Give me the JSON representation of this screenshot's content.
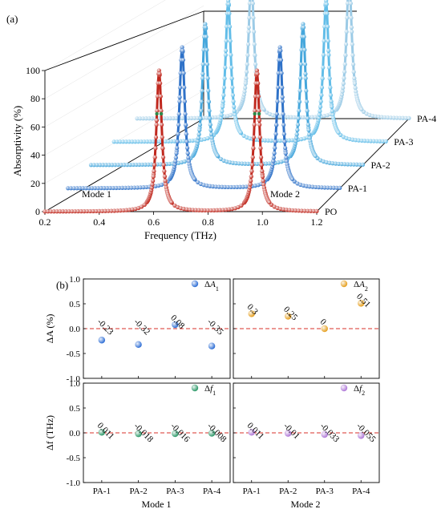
{
  "chart_data": [
    {
      "type": "line",
      "panel_label": "(a)",
      "xlabel": "Frequency (THz)",
      "ylabel": "Absorptivity (%)",
      "x_ticks": [
        "0.2",
        "0.4",
        "0.6",
        "0.8",
        "1.0",
        "1.2"
      ],
      "y_ticks": [
        "0",
        "20",
        "40",
        "60",
        "80",
        "100"
      ],
      "xlim": [
        0.2,
        1.2
      ],
      "ylim": [
        0,
        100
      ],
      "layers": [
        "PO",
        "PA-1",
        "PA-2",
        "PA-3",
        "PA-4"
      ],
      "annotations": [
        "Mode 1",
        "Mode 2"
      ],
      "series": [
        {
          "name": "PO",
          "peaks": [
            0.62,
            0.98
          ],
          "peak_values": [
            100,
            100
          ],
          "color": "#c0281e"
        },
        {
          "name": "PA-1",
          "peaks": [
            0.62,
            0.98
          ],
          "peak_values": [
            100,
            100
          ],
          "color": "#2f72c8"
        },
        {
          "name": "PA-2",
          "peaks": [
            0.62,
            0.98
          ],
          "peak_values": [
            100,
            100
          ],
          "color": "#46a7dc"
        },
        {
          "name": "PA-3",
          "peaks": [
            0.62,
            0.98
          ],
          "peak_values": [
            100,
            100
          ],
          "color": "#62bde8"
        },
        {
          "name": "PA-4",
          "peaks": [
            0.62,
            0.98
          ],
          "peak_values": [
            100,
            100
          ],
          "color": "#9ccbe6"
        }
      ]
    },
    {
      "type": "scatter",
      "panel_label": "(b)",
      "grid": false,
      "categories": [
        "PA-1",
        "PA-2",
        "PA-3",
        "PA-4"
      ],
      "xlabel_left": "Mode 1",
      "xlabel_right": "Mode 2",
      "top": {
        "ylabel": "ΔA (%)",
        "y_ticks": [
          "1.0",
          "0.5",
          "0.0",
          "-0.5",
          "-1.0"
        ],
        "ylim": [
          -1,
          1
        ],
        "left": {
          "legend": "ΔA1",
          "color": "#2f6fd6",
          "values": [
            -0.23,
            -0.32,
            0.08,
            -0.35
          ],
          "labels": [
            "-0.23",
            "-0.32",
            "0.08",
            "-0.35"
          ]
        },
        "right": {
          "legend": "ΔA2",
          "color": "#e6a020",
          "values": [
            0.3,
            0.25,
            0,
            0.51
          ],
          "labels": [
            "0.3",
            "0.25",
            "0",
            "0.51"
          ]
        }
      },
      "bottom": {
        "ylabel": "Δf (THz)",
        "y_ticks": [
          "1.0",
          "0.5",
          "0.0",
          "-0.5",
          "-1.0"
        ],
        "ylim": [
          -1,
          1
        ],
        "left": {
          "legend": "Δf1",
          "color": "#2e9a6a",
          "values": [
            0.011,
            -0.018,
            -0.016,
            -0.008
          ],
          "labels": [
            "0.011",
            "-0.018",
            "-0.016",
            "-0.008"
          ]
        },
        "right": {
          "legend": "Δf2",
          "color": "#b07ad8",
          "values": [
            0.011,
            -0.01,
            -0.033,
            -0.055
          ],
          "labels": [
            "0.011",
            "-0.01",
            "-0.033",
            "-0.055"
          ]
        }
      }
    }
  ]
}
